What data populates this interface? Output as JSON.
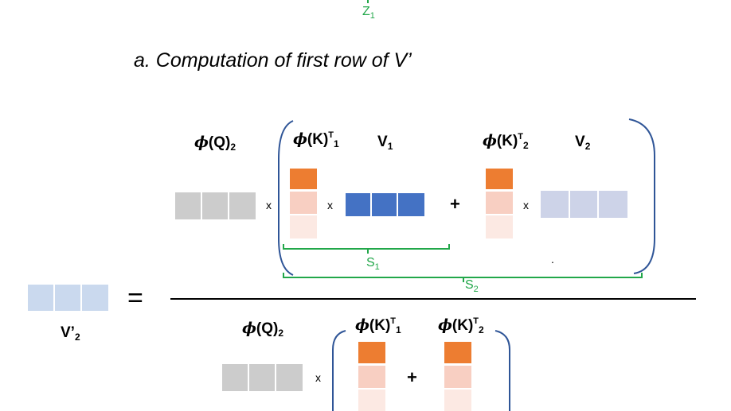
{
  "top_label": {
    "main": "Z",
    "sub": "1"
  },
  "caption": "a. Computation of first row of V’",
  "labels": {
    "phi_q2": {
      "phi": "ϕ",
      "text": "(Q)",
      "sub": "2"
    },
    "phi_kt1": {
      "phi": "ϕ",
      "text": "(K)",
      "sup": "T",
      "sub": "1"
    },
    "v1": {
      "text": "V",
      "sub": "1"
    },
    "phi_kt2": {
      "phi": "ϕ",
      "text": "(K)",
      "sup": "T",
      "sub": "2"
    },
    "v2": {
      "text": "V",
      "sub": "2"
    },
    "v_prime_2": {
      "text": "V’",
      "sub": "2"
    },
    "den_phi_q2": {
      "phi": "ϕ",
      "text": "(Q)",
      "sub": "2"
    },
    "den_phi_kt1": {
      "phi": "ϕ",
      "text": "(K)",
      "sup": "T",
      "sub": "1"
    },
    "den_phi_kt2": {
      "phi": "ϕ",
      "text": "(K)",
      "sup": "T",
      "sub": "2"
    }
  },
  "brace_labels": {
    "s1": {
      "main": "S",
      "sub": "1"
    },
    "s2": {
      "main": "S",
      "sub": "2"
    }
  },
  "operators": {
    "times": "x",
    "plus": "+",
    "equals": "=",
    "dot": "."
  },
  "colors": {
    "q_gray": "#cccccc",
    "orange": "#ed7d31",
    "orange_mid": "#f8cfc2",
    "orange_light": "#fce9e3",
    "v1_blue": "#4472c4",
    "v2_lavender": "#cdd3e8",
    "v_prime": "#cad9ee",
    "green": "#22a74a",
    "bracket_blue": "#2f5597"
  }
}
